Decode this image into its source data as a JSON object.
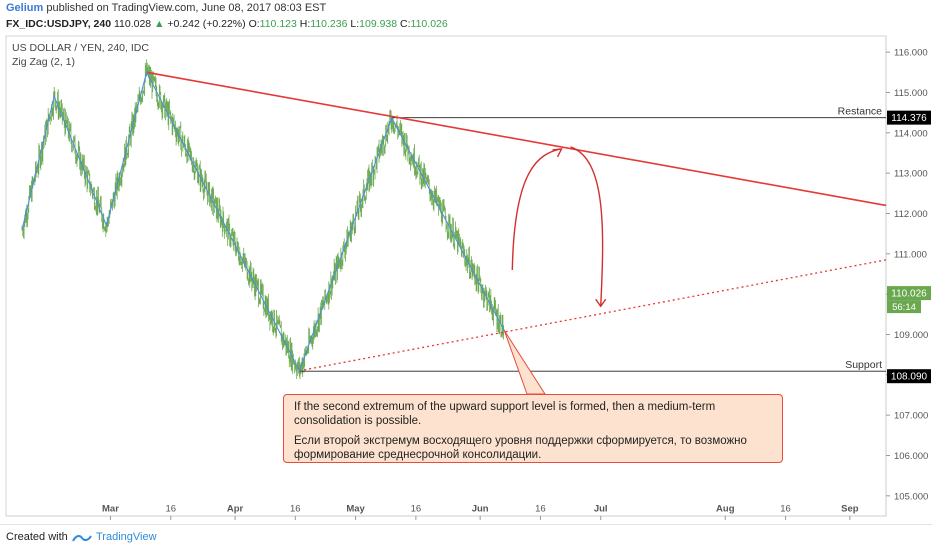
{
  "header": {
    "author": "Gelium",
    "published_text": "published on TradingView.com, June 08, 2017 08:03 EST",
    "symbol": "FX_IDC:USDJPY, 240",
    "last": "110.028",
    "change_arrow": "▲",
    "change": "+0.242 (+0.22%)",
    "open_label": "O:",
    "open": "110.123",
    "high_label": "H:",
    "high": "110.236",
    "low_label": "L:",
    "low": "109.938",
    "close_label": "C:",
    "close": "110.026"
  },
  "chart_title": "US DOLLAR / YEN, 240, IDC",
  "indicator": "Zig Zag (2, 1)",
  "annotations": {
    "resistance_label": "Restance",
    "support_label": "Support",
    "note_en": "If the second extremum of the upward support level is formed, then a medium-term consolidation is possible.",
    "note_ru": "Если второй экстремум восходящего уровня поддержки сформируется, то возможно формирование среднесрочной консолидации."
  },
  "price_badges": {
    "resistance": "114.376",
    "current": "110.026",
    "timer": "56:14",
    "support": "108.090"
  },
  "footer": {
    "created": "Created with",
    "brand": "TradingView"
  },
  "colors": {
    "trend_red": "#e53935",
    "zigzag_blue": "#4a90d9",
    "candles_green": "#6aa84f",
    "badge_green": "#6aa84f",
    "badge_dark": "#000000",
    "note_bg": "#fde3cf"
  },
  "chart_data": {
    "type": "line",
    "y_axis": {
      "ticks": [
        "116.000",
        "115.000",
        "114.000",
        "113.000",
        "112.000",
        "111.000",
        "110.000",
        "109.000",
        "108.000",
        "107.000",
        "106.000",
        "105.000"
      ],
      "ylim": [
        104.5,
        116.4
      ]
    },
    "x_axis": {
      "ticks": [
        {
          "label": "Mar",
          "date": "2017-03-01"
        },
        {
          "label": "16",
          "date": "2017-03-16"
        },
        {
          "label": "Apr",
          "date": "2017-04-01"
        },
        {
          "label": "16",
          "date": "2017-04-16"
        },
        {
          "label": "May",
          "date": "2017-05-01"
        },
        {
          "label": "16",
          "date": "2017-05-16"
        },
        {
          "label": "Jun",
          "date": "2017-06-01"
        },
        {
          "label": "16",
          "date": "2017-06-16"
        },
        {
          "label": "Jul",
          "date": "2017-07-01"
        },
        {
          "label": "Aug",
          "date": "2017-08-01"
        },
        {
          "label": "16",
          "date": "2017-08-16"
        },
        {
          "label": "Sep",
          "date": "2017-09-01"
        }
      ],
      "range": [
        "2017-02-03",
        "2017-09-10"
      ]
    },
    "series": [
      {
        "name": "Zig Zag (2, 1)",
        "points": [
          {
            "x": "2017-02-07",
            "y": 111.6
          },
          {
            "x": "2017-02-15",
            "y": 114.9
          },
          {
            "x": "2017-02-28",
            "y": 111.7
          },
          {
            "x": "2017-03-10",
            "y": 115.5
          },
          {
            "x": "2017-04-17",
            "y": 108.1
          },
          {
            "x": "2017-05-10",
            "y": 114.37
          },
          {
            "x": "2017-06-07",
            "y": 109.1
          }
        ]
      }
    ],
    "trendlines": [
      {
        "name": "resistance_trend",
        "style": "solid",
        "from": {
          "x": "2017-03-10",
          "y": 115.5
        },
        "to": {
          "x": "2017-09-10",
          "y": 112.2
        }
      },
      {
        "name": "support_trend",
        "style": "dotted",
        "from": {
          "x": "2017-04-17",
          "y": 108.1
        },
        "to": {
          "x": "2017-09-10",
          "y": 110.85
        }
      }
    ],
    "horizontal_levels": [
      {
        "name": "resistance",
        "y": 114.376,
        "from": "2017-05-10"
      },
      {
        "name": "support",
        "y": 108.09,
        "from": "2017-04-17"
      }
    ],
    "forecast_arc": [
      {
        "x": "2017-06-09",
        "y": 110.6
      },
      {
        "x": "2017-06-21",
        "y": 113.6
      },
      {
        "x": "2017-07-01",
        "y": 109.7
      }
    ],
    "current_price": 110.026
  }
}
